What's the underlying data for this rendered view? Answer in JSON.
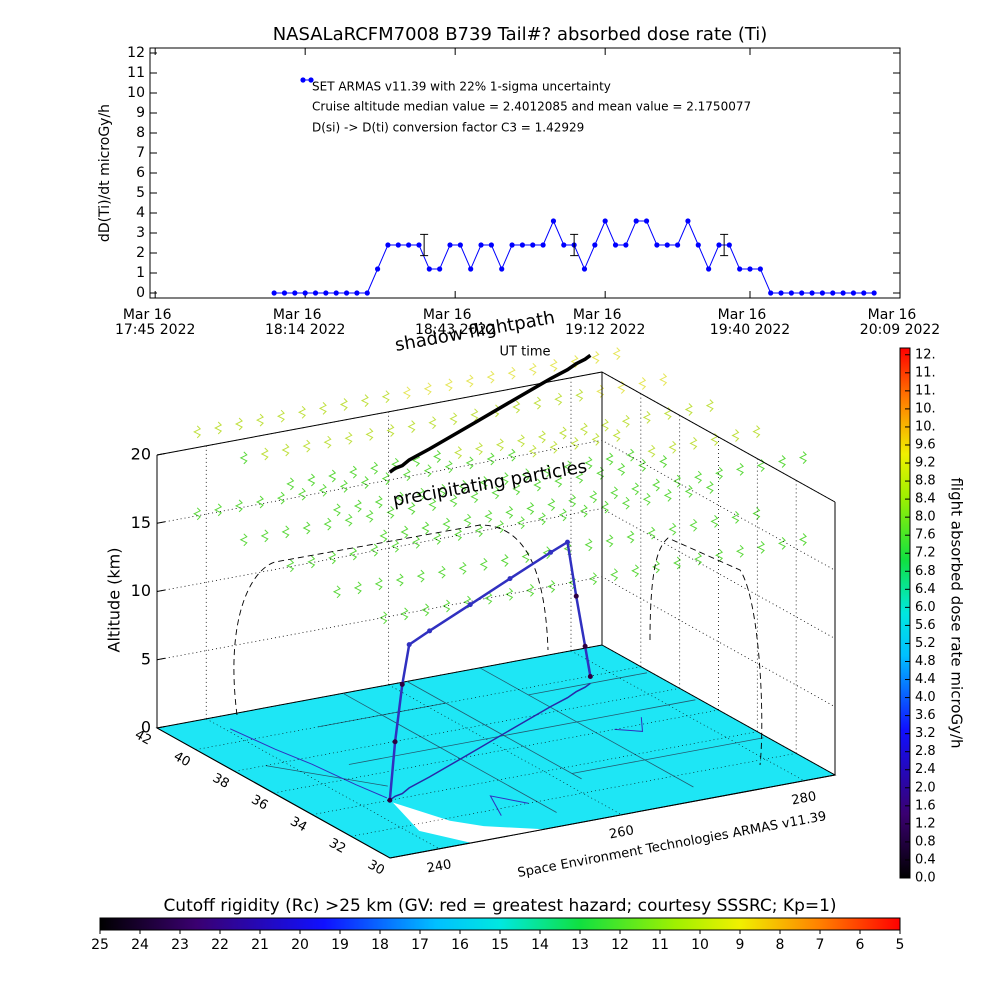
{
  "chart_data": [
    {
      "type": "line",
      "title": "NASALaRCFM7008  B739 Tail#? absorbed dose rate (Ti)",
      "y_label": "dD(Ti)/dt microGy/h",
      "x_label": "UT time",
      "annotations": [
        "Cruise altitude median value = 2.4012085 and mean value = 2.1750077",
        "D(si) -> D(ti) conversion factor C3 = 1.42929"
      ],
      "x": [
        "18:08",
        "18:10",
        "18:12",
        "18:14",
        "18:16",
        "18:18",
        "18:20",
        "18:22",
        "18:24",
        "18:26",
        "18:28",
        "18:30",
        "18:32",
        "18:34",
        "18:36",
        "18:38",
        "18:40",
        "18:42",
        "18:44",
        "18:46",
        "18:48",
        "18:50",
        "18:52",
        "18:54",
        "18:56",
        "18:58",
        "19:00",
        "19:02",
        "19:04",
        "19:06",
        "19:08",
        "19:10",
        "19:12",
        "19:14",
        "19:16",
        "19:18",
        "19:20",
        "19:22",
        "19:24",
        "19:26",
        "19:28",
        "19:30",
        "19:32",
        "19:34",
        "19:36",
        "19:38",
        "19:40",
        "19:42",
        "19:44",
        "19:46",
        "19:48",
        "19:50",
        "19:52",
        "19:54",
        "19:56",
        "19:58",
        "20:00",
        "20:02",
        "20:04"
      ],
      "series": [
        {
          "name": "SET ARMAS v11.39 with 22% 1-sigma uncertainty",
          "color": "#0000ff",
          "values": [
            0,
            0,
            0,
            0,
            0,
            0,
            0,
            0,
            0,
            0,
            1.2,
            2.4,
            2.4,
            2.4,
            2.4,
            1.2,
            1.2,
            2.4,
            2.4,
            1.2,
            2.4,
            2.4,
            1.2,
            2.4,
            2.4,
            2.4,
            2.4,
            3.6,
            2.4,
            2.4,
            1.2,
            2.4,
            3.6,
            2.4,
            2.4,
            3.6,
            3.6,
            2.4,
            2.4,
            2.4,
            3.6,
            2.4,
            1.2,
            2.4,
            2.4,
            1.2,
            1.2,
            1.2,
            0,
            0,
            0,
            0,
            0,
            0,
            0,
            0,
            0,
            0,
            0
          ]
        }
      ],
      "error_bars": {
        "x": [
          "18:37",
          "19:06",
          "19:35"
        ],
        "values": [
          2.4,
          2.4,
          2.4
        ],
        "errors": [
          0.53,
          0.53,
          0.53
        ]
      },
      "xlim": [
        "17:44",
        "20:09"
      ],
      "xticks": [
        {
          "value": "17:45",
          "label": [
            "Mar 16",
            "17:45 2022"
          ]
        },
        {
          "value": "18:14",
          "label": [
            "Mar 16",
            "18:14 2022"
          ]
        },
        {
          "value": "18:43",
          "label": [
            "Mar 16",
            "18:43 2022"
          ]
        },
        {
          "value": "19:12",
          "label": [
            "Mar 16",
            "19:12 2022"
          ]
        },
        {
          "value": "19:40",
          "label": [
            "Mar 16",
            "19:40 2022"
          ]
        },
        {
          "value": "20:09",
          "label": [
            "Mar 16",
            "20:09 2022"
          ]
        }
      ],
      "ylim": [
        -0.25,
        12.25
      ],
      "yticks": [
        0,
        1,
        2,
        3,
        4,
        5,
        6,
        7,
        8,
        9,
        10,
        11,
        12
      ]
    },
    {
      "type": "scatter3d",
      "annotations": [
        "shadow flightpath",
        "precipitating particles"
      ],
      "z_label": "Altitude (km)",
      "credit": "Space Environment Technologies ARMAS v11.39",
      "xlim": [
        234.6,
        283.4
      ],
      "xticks": [
        240,
        260,
        280
      ],
      "ylim": [
        30,
        42
      ],
      "yticks": [
        42,
        40,
        38,
        36,
        34,
        32,
        30
      ],
      "zlim": [
        0,
        20
      ],
      "zticks": [
        0,
        5,
        10,
        15,
        20
      ],
      "flight_path": {
        "lon": [
          243.1,
          244.1,
          245.1,
          246.5,
          249.8,
          256.6,
          263.3,
          270.1,
          272.8,
          274.4,
          275.8,
          276.8
        ],
        "lat": [
          34.0,
          34.2,
          34.3,
          34.6,
          35.1,
          36.2,
          37.3,
          38.4,
          38.8,
          39.1,
          39.3,
          39.5
        ],
        "alt": [
          0,
          4,
          8,
          10.5,
          10.7,
          10.9,
          11.1,
          11.3,
          11.4,
          7,
          3,
          0.5
        ]
      },
      "color": "#3030c0"
    },
    {
      "type": "colorbar",
      "orientation": "vertical",
      "title": "flight absorbed dose rate microGy/h",
      "lim": [
        0,
        11.75
      ],
      "ticks": [
        {
          "value": 0,
          "label": "0.0"
        },
        0.4,
        0.8,
        1.2,
        1.6,
        {
          "value": 2,
          "label": "2.0"
        },
        2.4,
        2.8,
        3.2,
        3.6,
        {
          "value": 4,
          "label": "4.0"
        },
        4.4,
        4.8,
        5.2,
        5.6,
        {
          "value": 6,
          "label": "6.0"
        },
        6.4,
        6.8,
        7.2,
        7.6,
        {
          "value": 8,
          "label": "8.0"
        },
        8.4,
        8.8,
        9.2,
        9.6,
        {
          "value": 10,
          "label": "10."
        },
        {
          "value": 10.4,
          "label": "10."
        },
        {
          "value": 10.8,
          "label": "11."
        },
        {
          "value": 11.2,
          "label": "11."
        },
        {
          "value": 11.6,
          "label": "12."
        }
      ]
    },
    {
      "type": "colorbar",
      "orientation": "horizontal",
      "title": "Cutoff rigidity (Rc) >25 km (GV: red = greatest hazard; courtesy SSSRC; Kp=1)",
      "lim": [
        25,
        5
      ],
      "ticks": [
        25,
        24,
        23,
        22,
        21,
        20,
        19,
        18,
        17,
        16,
        15,
        14,
        13,
        12,
        11,
        10,
        9,
        8,
        7,
        6,
        5
      ]
    }
  ]
}
